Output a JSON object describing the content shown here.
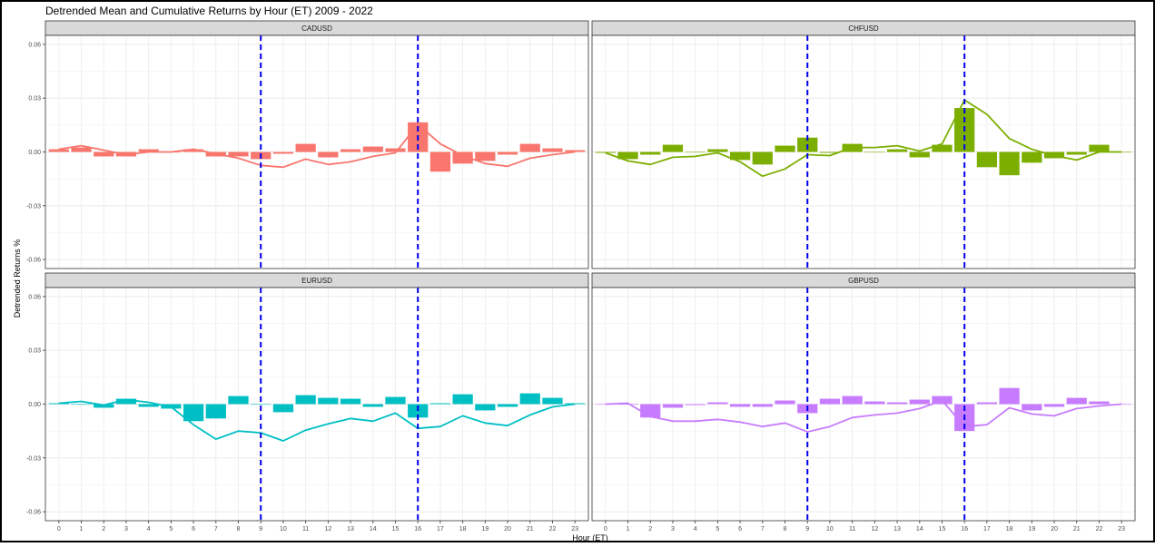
{
  "title": "Detrended Mean and Cumulative Returns by Hour (ET) 2009 - 2022",
  "xlabel": "Hour (ET)",
  "ylabel": "Detrended Returns %",
  "chart_data": {
    "type": "bar",
    "title": "Detrended Mean and Cumulative Returns by Hour (ET) 2009 - 2022",
    "xlabel": "Hour (ET)",
    "ylabel": "Detrended Returns %",
    "x": [
      0,
      1,
      2,
      3,
      4,
      5,
      6,
      7,
      8,
      9,
      10,
      11,
      12,
      13,
      14,
      15,
      16,
      17,
      18,
      19,
      20,
      21,
      22,
      23
    ],
    "x_ticks": [
      "0",
      "1",
      "2",
      "3",
      "4",
      "5",
      "6",
      "7",
      "8",
      "9",
      "10",
      "11",
      "12",
      "13",
      "14",
      "15",
      "16",
      "17",
      "18",
      "19",
      "20",
      "21",
      "22",
      "23"
    ],
    "ylim": [
      -0.065,
      0.065
    ],
    "y_ticks": [
      -0.06,
      -0.03,
      0.0,
      0.03,
      0.06
    ],
    "y_tick_labels": [
      "-0.06",
      "-0.03",
      "0.00",
      "0.03",
      "0.06"
    ],
    "vlines": [
      9,
      16
    ],
    "vline_color": "#0000ee",
    "grid": true,
    "legend": "none",
    "panels": [
      {
        "name": "CADUSD",
        "color": "#f8766d",
        "bars": [
          0.0015,
          0.0025,
          -0.0025,
          -0.0025,
          0.0015,
          0.0,
          0.0015,
          -0.0025,
          -0.0025,
          -0.004,
          -0.001,
          0.0045,
          -0.003,
          0.0015,
          0.003,
          0.002,
          0.0165,
          -0.011,
          -0.0065,
          -0.005,
          -0.0015,
          0.0045,
          0.002,
          0.001
        ],
        "cumulative": [
          0.0015,
          0.0035,
          0.001,
          -0.0015,
          0.0,
          0.0,
          0.0015,
          -0.001,
          -0.0035,
          -0.0075,
          -0.0085,
          -0.004,
          -0.007,
          -0.0055,
          -0.0025,
          -0.0005,
          0.0155,
          0.0045,
          -0.002,
          -0.0065,
          -0.008,
          -0.0035,
          -0.0015,
          0.0
        ]
      },
      {
        "name": "CHFUSD",
        "color": "#7cae00",
        "bars": [
          -0.0005,
          -0.004,
          -0.0015,
          0.004,
          0.0,
          0.0015,
          -0.0045,
          -0.007,
          0.0035,
          0.008,
          -0.0005,
          0.0045,
          0.0,
          0.0015,
          -0.003,
          0.004,
          0.0245,
          -0.0085,
          -0.013,
          -0.006,
          -0.0035,
          -0.0015,
          0.004,
          0.0
        ],
        "cumulative": [
          -0.0005,
          -0.005,
          -0.007,
          -0.003,
          -0.0025,
          -0.0005,
          -0.0055,
          -0.0135,
          -0.0095,
          -0.0015,
          -0.002,
          0.0025,
          0.0025,
          0.0035,
          0.0005,
          0.0045,
          0.029,
          0.021,
          0.0075,
          0.0015,
          -0.002,
          -0.0045,
          0.0,
          0.0
        ]
      },
      {
        "name": "EURUSD",
        "color": "#00bfc4",
        "bars": [
          0.0005,
          0.0,
          -0.002,
          0.003,
          -0.0015,
          -0.0025,
          -0.0095,
          -0.008,
          0.0045,
          0.0,
          -0.0045,
          0.005,
          0.0035,
          0.003,
          -0.0015,
          0.004,
          -0.0075,
          0.0005,
          0.0055,
          -0.0035,
          -0.0015,
          0.006,
          0.0035,
          0.0005
        ],
        "cumulative": [
          0.0005,
          0.0015,
          -0.0005,
          0.0025,
          0.001,
          -0.0015,
          -0.0115,
          -0.0195,
          -0.015,
          -0.016,
          -0.0205,
          -0.0145,
          -0.011,
          -0.008,
          -0.0095,
          -0.005,
          -0.0135,
          -0.0125,
          -0.0065,
          -0.0105,
          -0.012,
          -0.006,
          -0.0015,
          0.0
        ]
      },
      {
        "name": "GBPUSD",
        "color": "#c77cff",
        "bars": [
          0.0,
          0.0,
          -0.0075,
          -0.002,
          -0.0005,
          0.001,
          -0.0015,
          -0.0015,
          0.002,
          -0.005,
          0.003,
          0.0045,
          0.0015,
          0.001,
          0.0025,
          0.0045,
          -0.015,
          0.001,
          0.009,
          -0.0035,
          -0.0015,
          0.0035,
          0.0015,
          0.0
        ],
        "cumulative": [
          0.0,
          0.0005,
          -0.007,
          -0.0095,
          -0.0095,
          -0.0085,
          -0.01,
          -0.0125,
          -0.0105,
          -0.0155,
          -0.0125,
          -0.0075,
          -0.006,
          -0.005,
          -0.0025,
          0.002,
          -0.0125,
          -0.0115,
          -0.002,
          -0.0055,
          -0.0065,
          -0.0025,
          -0.001,
          0.0
        ]
      }
    ]
  }
}
